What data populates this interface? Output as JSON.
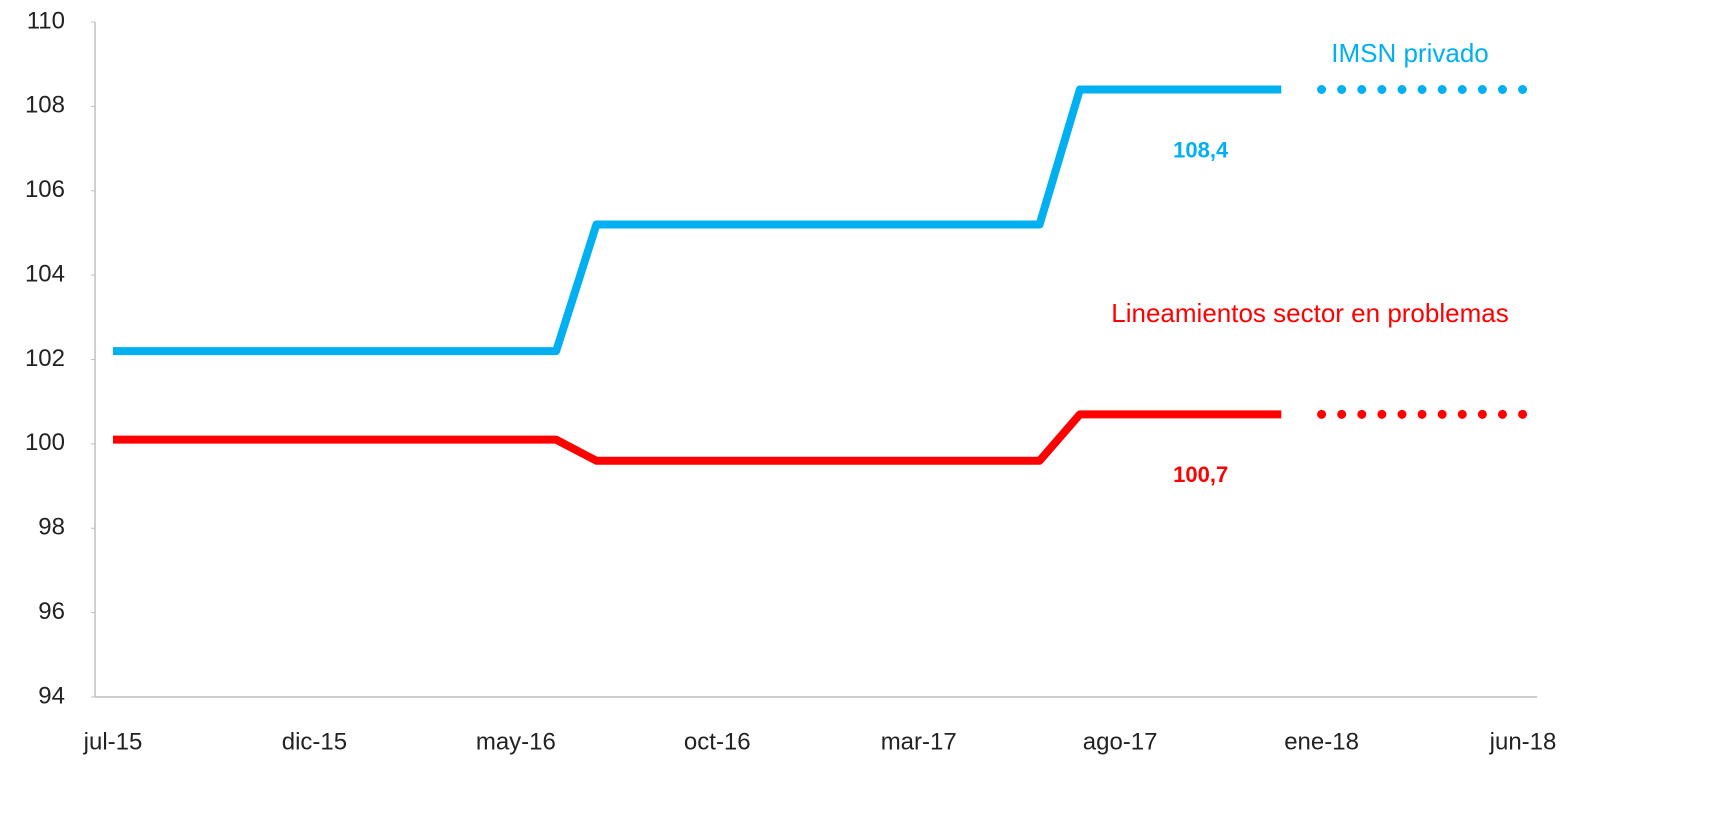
{
  "chart_data": {
    "type": "line",
    "categories": [
      "jul-15",
      null,
      null,
      null,
      null,
      "dic-15",
      null,
      null,
      null,
      null,
      "may-16",
      null,
      null,
      null,
      null,
      "oct-16",
      null,
      null,
      null,
      null,
      "mar-17",
      null,
      null,
      null,
      null,
      "ago-17",
      null,
      null,
      null,
      null,
      "ene-18",
      null,
      null,
      null,
      null,
      "jun-18"
    ],
    "series": [
      {
        "name": "IMSN privado",
        "color": "#00b0f0",
        "dotted_from": "ene-18",
        "values": [
          102.2,
          102.2,
          102.2,
          102.2,
          102.2,
          102.2,
          102.2,
          102.2,
          102.2,
          102.2,
          102.2,
          102.2,
          105.2,
          105.2,
          105.2,
          105.2,
          105.2,
          105.2,
          105.2,
          105.2,
          105.2,
          105.2,
          105.2,
          105.2,
          108.4,
          108.4,
          108.4,
          108.4,
          108.4,
          108.4,
          108.4,
          108.4,
          108.4,
          108.4,
          108.4,
          108.4
        ],
        "value_labels": [
          null,
          null,
          null,
          null,
          null,
          null,
          null,
          null,
          null,
          null,
          null,
          null,
          null,
          null,
          null,
          null,
          null,
          null,
          null,
          null,
          null,
          null,
          null,
          null,
          null,
          null,
          null,
          "108,4",
          null,
          null,
          null,
          null,
          null,
          null,
          null,
          null
        ]
      },
      {
        "name": "Lineamientos sector en problemas",
        "color": "#ff0000",
        "dotted_from": "ene-18",
        "values": [
          100.1,
          100.1,
          100.1,
          100.1,
          100.1,
          100.1,
          100.1,
          100.1,
          100.1,
          100.1,
          100.1,
          100.1,
          99.6,
          99.6,
          99.6,
          99.6,
          99.6,
          99.6,
          99.6,
          99.6,
          99.6,
          99.6,
          99.6,
          99.6,
          100.7,
          100.7,
          100.7,
          100.7,
          100.7,
          100.7,
          100.7,
          100.7,
          100.7,
          100.7,
          100.7,
          100.7
        ],
        "value_labels": [
          null,
          null,
          null,
          null,
          null,
          null,
          null,
          null,
          null,
          null,
          null,
          null,
          null,
          null,
          null,
          null,
          null,
          null,
          null,
          null,
          null,
          null,
          null,
          null,
          null,
          null,
          null,
          "100,7",
          null,
          null,
          null,
          null,
          null,
          null,
          null,
          null
        ]
      }
    ],
    "ylim": [
      94,
      110
    ],
    "yticks": [
      94,
      96,
      98,
      100,
      102,
      104,
      106,
      108,
      110
    ],
    "grid": false
  }
}
